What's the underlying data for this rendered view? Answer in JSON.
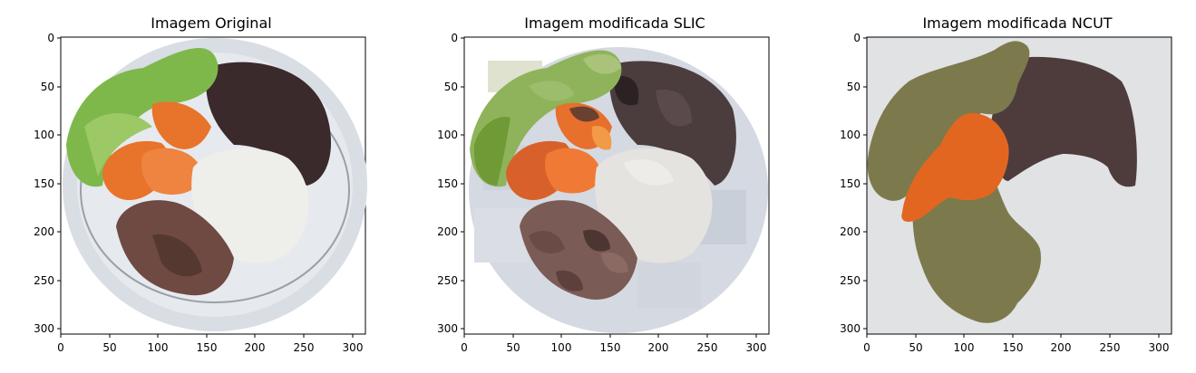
{
  "panels": [
    {
      "title": "Imagem Original",
      "xticks": [
        "0",
        "50",
        "100",
        "150",
        "200",
        "250",
        "300"
      ],
      "yticks": [
        "0",
        "50",
        "100",
        "150",
        "200",
        "250",
        "300"
      ]
    },
    {
      "title": "Imagem modificada SLIC",
      "xticks": [
        "0",
        "50",
        "100",
        "150",
        "200",
        "250",
        "300"
      ],
      "yticks": [
        "0",
        "50",
        "100",
        "150",
        "200",
        "250",
        "300"
      ]
    },
    {
      "title": "Imagem modificada NCUT",
      "xticks": [
        "0",
        "50",
        "100",
        "150",
        "200",
        "250",
        "300"
      ],
      "yticks": [
        "0",
        "50",
        "100",
        "150",
        "200",
        "250",
        "300"
      ]
    }
  ],
  "colors": {
    "lettuce": "#7fb84a",
    "beans": "#3a2a2c",
    "carrot": "#e8732a",
    "rice": "#eeeeea",
    "steak": "#6e4a42",
    "plate": "#dfe3ea",
    "ncut_background": "#e1e2e3",
    "ncut_olive": "#7c7a4d",
    "ncut_orange": "#e26620",
    "ncut_dark": "#4e3c3d"
  }
}
